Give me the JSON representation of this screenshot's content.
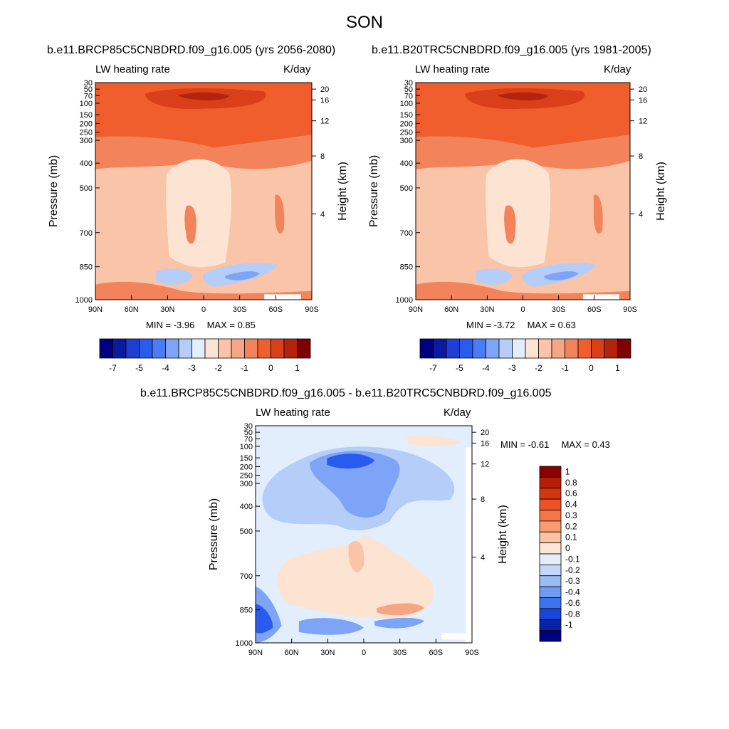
{
  "page": {
    "title": "SON"
  },
  "panels": [
    {
      "id": "panel-rcp85",
      "title": "b.e11.BRCP85C5CNBDRD.f09_g16.005 (yrs 2056-2080)",
      "var_label": "LW heating rate",
      "units": "K/day",
      "min_label": "MIN =",
      "min_value": "-3.96",
      "max_label": "MAX =",
      "max_value": "0.85"
    },
    {
      "id": "panel-b20tr",
      "title": "b.e11.B20TRC5CNBDRD.f09_g16.005 (yrs 1981-2005)",
      "var_label": "LW heating rate",
      "units": "K/day",
      "min_label": "MIN =",
      "min_value": "-3.72",
      "max_label": "MAX =",
      "max_value": "0.63"
    },
    {
      "id": "panel-diff",
      "title": "b.e11.BRCP85C5CNBDRD.f09_g16.005 - b.e11.B20TRC5CNBDRD.f09_g16.005",
      "var_label": "LW heating rate",
      "units": "K/day",
      "min_label": "MIN =",
      "min_value": "-0.61",
      "max_label": "MAX =",
      "max_value": "0.43"
    }
  ],
  "chart_data": [
    {
      "type": "heatmap",
      "panel": "panel-rcp85",
      "x_ticks": [
        "90N",
        "60N",
        "30N",
        "0",
        "30S",
        "60S",
        "90S"
      ],
      "y_ticks_pressure": [
        "30",
        "50",
        "70",
        "100",
        "150",
        "200",
        "250",
        "300",
        "400",
        "500",
        "700",
        "850",
        "1000"
      ],
      "y_ticks_height_km": [
        "20",
        "16",
        "12",
        "8",
        "4"
      ],
      "ylabel_left": "Pressure (mb)",
      "ylabel_right": "Height (km)",
      "colorbar": {
        "orientation": "horizontal",
        "labels": [
          "-7",
          "-5",
          "-4",
          "-3",
          "-2",
          "-1",
          "0",
          "1"
        ],
        "colors": [
          "#00007f",
          "#0b1a9e",
          "#1e3fd6",
          "#2a5bef",
          "#4a7df4",
          "#7ea4f7",
          "#b4cdf9",
          "#e3eefd",
          "#fde3d1",
          "#f9c4a8",
          "#f6a684",
          "#f2835a",
          "#ef5e2c",
          "#d9401a",
          "#b3240c",
          "#7f0000"
        ]
      }
    },
    {
      "type": "heatmap",
      "panel": "panel-b20tr",
      "x_ticks": [
        "90N",
        "60N",
        "30N",
        "0",
        "30S",
        "60S",
        "90S"
      ],
      "y_ticks_pressure": [
        "30",
        "50",
        "70",
        "100",
        "150",
        "200",
        "250",
        "300",
        "400",
        "500",
        "700",
        "850",
        "1000"
      ],
      "y_ticks_height_km": [
        "20",
        "16",
        "12",
        "8",
        "4"
      ],
      "ylabel_left": "Pressure (mb)",
      "ylabel_right": "Height (km)",
      "colorbar": {
        "orientation": "horizontal",
        "labels": [
          "-7",
          "-5",
          "-4",
          "-3",
          "-2",
          "-1",
          "0",
          "1"
        ],
        "colors": [
          "#00007f",
          "#0b1a9e",
          "#1e3fd6",
          "#2a5bef",
          "#4a7df4",
          "#7ea4f7",
          "#b4cdf9",
          "#e3eefd",
          "#fde3d1",
          "#f9c4a8",
          "#f6a684",
          "#f2835a",
          "#ef5e2c",
          "#d9401a",
          "#b3240c",
          "#7f0000"
        ]
      }
    },
    {
      "type": "heatmap",
      "panel": "panel-diff",
      "x_ticks": [
        "90N",
        "60N",
        "30N",
        "0",
        "30S",
        "60S",
        "90S"
      ],
      "y_ticks_pressure": [
        "30",
        "50",
        "70",
        "100",
        "150",
        "200",
        "250",
        "300",
        "400",
        "500",
        "700",
        "850",
        "1000"
      ],
      "y_ticks_height_km": [
        "20",
        "16",
        "12",
        "8",
        "4"
      ],
      "ylabel_left": "Pressure (mb)",
      "ylabel_right": "Height (km)",
      "colorbar": {
        "orientation": "vertical",
        "labels": [
          "1",
          "0.8",
          "0.6",
          "0.4",
          "0.3",
          "0.2",
          "0.1",
          "0",
          "-0.1",
          "-0.2",
          "-0.3",
          "-0.4",
          "-0.6",
          "-0.8",
          "-1"
        ],
        "colors": [
          "#8b0000",
          "#b71e06",
          "#d73410",
          "#ef5126",
          "#f57448",
          "#f89b73",
          "#fbc2a4",
          "#fde6d6",
          "#e4eefc",
          "#c2d7fa",
          "#9dbcf6",
          "#6f9bf2",
          "#3f73ec",
          "#1846dd",
          "#0a22a8",
          "#00007f"
        ]
      }
    }
  ]
}
